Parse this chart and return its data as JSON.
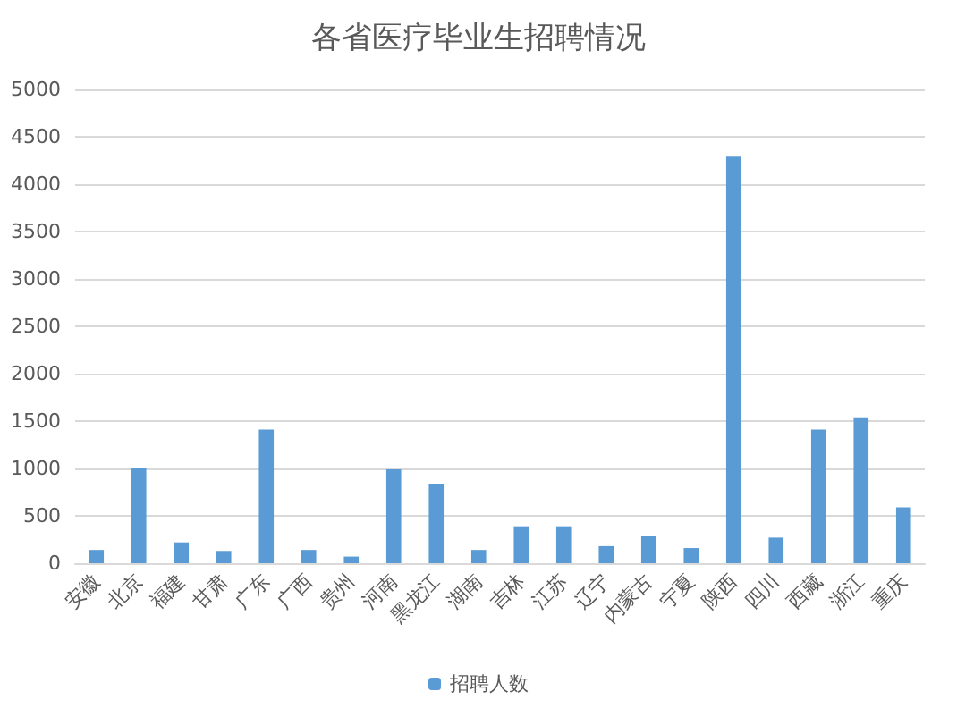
{
  "chart_data": {
    "type": "bar",
    "title": "各省医疗毕业生招聘情况",
    "categories": [
      "安徽",
      "北京",
      "福建",
      "甘肃",
      "广东",
      "广西",
      "贵州",
      "河南",
      "黑龙江",
      "湖南",
      "吉林",
      "江苏",
      "辽宁",
      "内蒙古",
      "宁夏",
      "陕西",
      "四川",
      "西藏",
      "浙江",
      "重庆"
    ],
    "series": [
      {
        "name": "招聘人数",
        "color": "#5b9bd5",
        "values": [
          140,
          1010,
          220,
          130,
          1410,
          140,
          70,
          990,
          840,
          140,
          390,
          390,
          180,
          290,
          160,
          4290,
          270,
          1410,
          1540,
          590
        ]
      }
    ],
    "ylim": [
      0,
      5000
    ],
    "yticks": [
      0,
      500,
      1000,
      1500,
      2000,
      2500,
      3000,
      3500,
      4000,
      4500,
      5000
    ],
    "grid": "y",
    "legend": "bottom"
  }
}
